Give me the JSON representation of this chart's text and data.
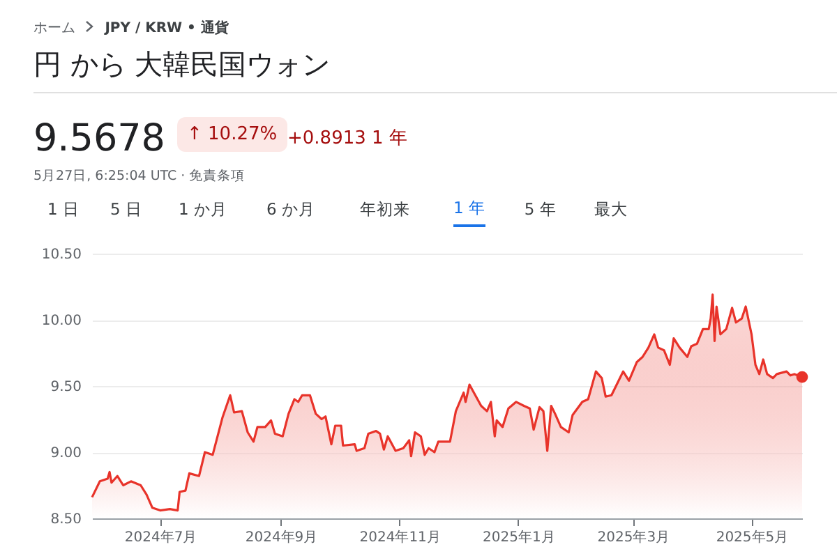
{
  "chart_data": {
    "type": "area",
    "title": "円 から 大韓民国ウォン",
    "annotations": [
      "ホーム",
      "JPY / KRW • 通貨",
      "9.5678",
      "↑ 10.27%",
      "+0.8913 1 年",
      "5月27日, 6:25:04 UTC · 免責条項",
      "1 日",
      "5 日",
      "1 か月",
      "6 か月",
      "年初来",
      "1 年",
      "5 年",
      "最大"
    ],
    "x": [
      "2024-05-27",
      "2024-05-31",
      "2024-06-04",
      "2024-06-05",
      "2024-06-06",
      "2024-06-09",
      "2024-06-12",
      "2024-06-16",
      "2024-06-21",
      "2024-06-24",
      "2024-06-27",
      "2024-07-01",
      "2024-07-06",
      "2024-07-10",
      "2024-07-11",
      "2024-07-14",
      "2024-07-16",
      "2024-07-21",
      "2024-07-24",
      "2024-07-28",
      "2024-08-02",
      "2024-08-06",
      "2024-08-08",
      "2024-08-12",
      "2024-08-15",
      "2024-08-18",
      "2024-08-20",
      "2024-08-24",
      "2024-08-27",
      "2024-08-29",
      "2024-09-02",
      "2024-09-05",
      "2024-09-08",
      "2024-09-10",
      "2024-09-12",
      "2024-09-16",
      "2024-09-19",
      "2024-09-22",
      "2024-09-24",
      "2024-09-27",
      "2024-09-29",
      "2024-10-02",
      "2024-10-03",
      "2024-10-09",
      "2024-10-10",
      "2024-10-14",
      "2024-10-16",
      "2024-10-20",
      "2024-10-22",
      "2024-10-24",
      "2024-10-26",
      "2024-10-30",
      "2024-11-03",
      "2024-11-06",
      "2024-11-07",
      "2024-11-09",
      "2024-11-12",
      "2024-11-14",
      "2024-11-16",
      "2024-11-19",
      "2024-11-21",
      "2024-11-27",
      "2024-11-30",
      "2024-12-04",
      "2024-12-05",
      "2024-12-07",
      "2024-12-10",
      "2024-12-13",
      "2024-12-16",
      "2024-12-18",
      "2024-12-20",
      "2024-12-21",
      "2024-12-24",
      "2024-12-27",
      "2024-12-31",
      "2025-01-04",
      "2025-01-07",
      "2025-01-09",
      "2025-01-12",
      "2025-01-14",
      "2025-01-16",
      "2025-01-18",
      "2025-01-20",
      "2025-01-23",
      "2025-01-27",
      "2025-01-29",
      "2025-02-03",
      "2025-02-06",
      "2025-02-10",
      "2025-02-13",
      "2025-02-15",
      "2025-02-18",
      "2025-02-21",
      "2025-02-24",
      "2025-02-27",
      "2025-03-03",
      "2025-03-06",
      "2025-03-09",
      "2025-03-12",
      "2025-03-14",
      "2025-03-17",
      "2025-03-20",
      "2025-03-22",
      "2025-03-25",
      "2025-03-29",
      "2025-03-31",
      "2025-04-03",
      "2025-04-06",
      "2025-04-09",
      "2025-04-10",
      "2025-04-11",
      "2025-04-12",
      "2025-04-13",
      "2025-04-15",
      "2025-04-18",
      "2025-04-21",
      "2025-04-23",
      "2025-04-26",
      "2025-04-28",
      "2025-05-01",
      "2025-05-03",
      "2025-05-05",
      "2025-05-07",
      "2025-05-09",
      "2025-05-12",
      "2025-05-14",
      "2025-05-19",
      "2025-05-21",
      "2025-05-23",
      "2025-05-27"
    ],
    "series": [
      {
        "color": "#e8332a",
        "values": [
          8.66,
          8.78,
          8.8,
          8.85,
          8.77,
          8.82,
          8.75,
          8.78,
          8.75,
          8.68,
          8.58,
          8.56,
          8.57,
          8.56,
          8.7,
          8.71,
          8.84,
          8.82,
          9.0,
          8.98,
          9.26,
          9.43,
          9.3,
          9.31,
          9.15,
          9.08,
          9.19,
          9.19,
          9.24,
          9.14,
          9.12,
          9.29,
          9.4,
          9.38,
          9.43,
          9.43,
          9.29,
          9.25,
          9.27,
          9.06,
          9.2,
          9.2,
          9.05,
          9.06,
          9.01,
          9.03,
          9.14,
          9.16,
          9.14,
          9.02,
          9.12,
          9.01,
          9.03,
          9.09,
          8.97,
          9.15,
          9.12,
          8.98,
          9.03,
          9.0,
          9.08,
          9.08,
          9.31,
          9.45,
          9.38,
          9.51,
          9.43,
          9.35,
          9.31,
          9.38,
          9.12,
          9.24,
          9.19,
          9.33,
          9.38,
          9.35,
          9.33,
          9.17,
          9.34,
          9.31,
          9.01,
          9.35,
          9.29,
          9.19,
          9.15,
          9.28,
          9.38,
          9.4,
          9.61,
          9.56,
          9.42,
          9.43,
          9.52,
          9.61,
          9.54,
          9.68,
          9.72,
          9.79,
          9.89,
          9.79,
          9.77,
          9.66,
          9.86,
          9.79,
          9.72,
          9.8,
          9.82,
          9.93,
          9.93,
          10.01,
          10.19,
          9.84,
          10.1,
          9.89,
          9.93,
          10.09,
          9.98,
          10.01,
          10.1,
          9.89,
          9.66,
          9.59,
          9.7,
          9.59,
          9.56,
          9.59,
          9.61,
          9.58,
          9.59,
          9.5678
        ]
      }
    ],
    "xlim": [
      "2024-05-27",
      "2025-05-27"
    ],
    "xticks": [
      {
        "value": "2024-07-01",
        "label": "2024年7月"
      },
      {
        "value": "2024-09-01",
        "label": "2024年9月"
      },
      {
        "value": "2024-11-01",
        "label": "2024年11月"
      },
      {
        "value": "2025-01-01",
        "label": "2025年1月"
      },
      {
        "value": "2025-03-01",
        "label": "2025年3月"
      },
      {
        "value": "2025-05-01",
        "label": "2025年5月"
      }
    ],
    "ylim": [
      8.5,
      10.5
    ],
    "yticks": [
      {
        "value": 8.5,
        "label": "8.50"
      },
      {
        "value": 9,
        "label": "9.00"
      },
      {
        "value": 9.5,
        "label": "9.50"
      },
      {
        "value": 10,
        "label": "10.00"
      },
      {
        "value": 10.5,
        "label": "10.50"
      }
    ],
    "grid": "y"
  }
}
